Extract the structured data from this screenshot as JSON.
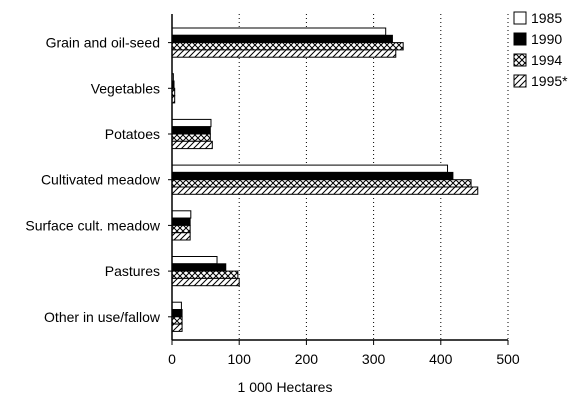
{
  "chart_data": {
    "type": "bar",
    "orientation": "horizontal",
    "title": "",
    "xlabel": "1 000 Hectares",
    "ylabel": "",
    "xlim": [
      0,
      500
    ],
    "xticks": [
      "0",
      "100",
      "200",
      "300",
      "400",
      "500"
    ],
    "grid": "vertical dotted",
    "legend_position": "top-right",
    "categories": [
      "Grain and oil-seed",
      "Vegetables",
      "Potatoes",
      "Cultivated meadow",
      "Surface cult. meadow",
      "Pastures",
      "Other in use/fallow"
    ],
    "series": [
      {
        "name": "1985",
        "pattern": "white",
        "values": [
          318,
          2,
          58,
          410,
          28,
          67,
          14
        ]
      },
      {
        "name": "1990",
        "pattern": "solid-black",
        "values": [
          328,
          3,
          57,
          418,
          27,
          80,
          15
        ]
      },
      {
        "name": "1994",
        "pattern": "cross-hatch",
        "values": [
          344,
          4,
          57,
          445,
          27,
          98,
          15
        ]
      },
      {
        "name": "1995*",
        "pattern": "diagonal",
        "values": [
          333,
          4,
          60,
          455,
          27,
          100,
          15
        ]
      }
    ]
  }
}
